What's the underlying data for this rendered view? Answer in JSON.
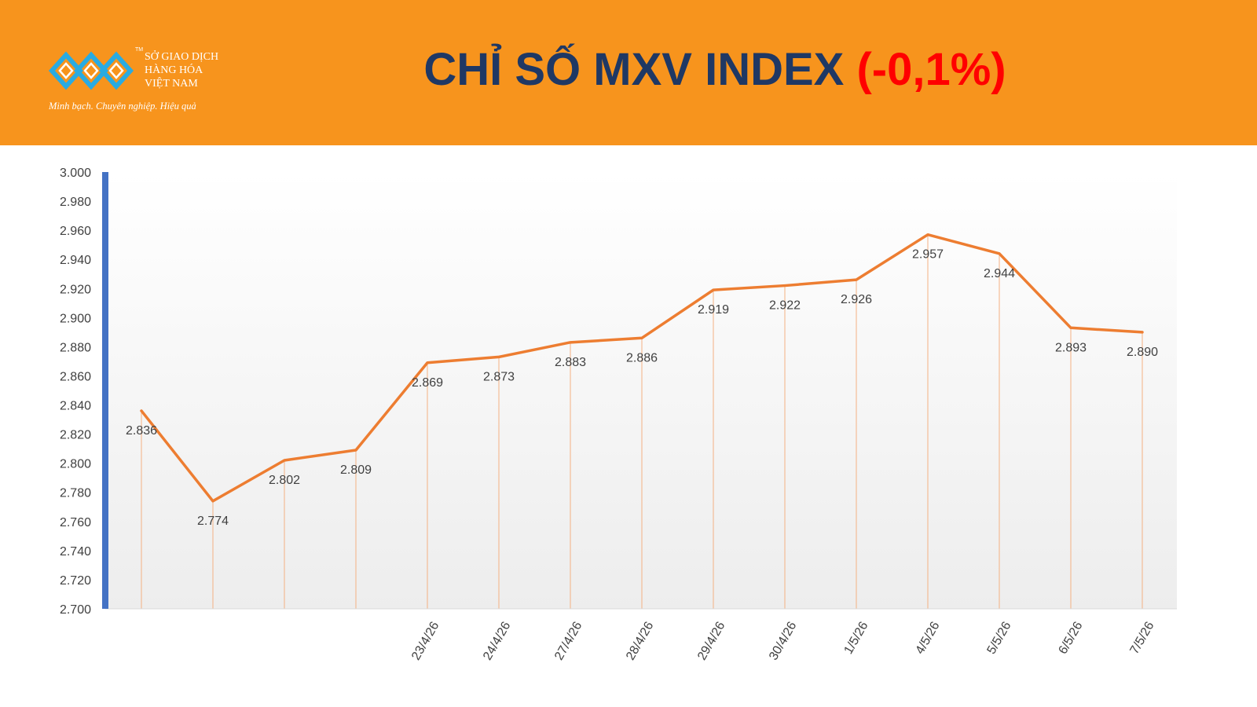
{
  "header": {
    "logo": {
      "trademark": "TM",
      "org_name": "SỞ GIAO DỊCH\nHÀNG HÓA\nVIỆT NAM",
      "slogan": "Minh bạch. Chuyên nghiệp. Hiệu quả"
    },
    "title_main": "CHỈ SỐ MXV INDEX ",
    "title_change": "(-0,1%)"
  },
  "colors": {
    "header_bg": "#F7941D",
    "title": "#1F3864",
    "change": "#FF0000",
    "line": "#ED7D31",
    "axis": "#4472C4",
    "logo": "#29ABE2"
  },
  "chart_data": {
    "type": "line",
    "title": "",
    "xlabel": "",
    "ylabel": "",
    "ylim": [
      2700,
      3000
    ],
    "y_ticks": [
      "2.700",
      "2.720",
      "2.740",
      "2.760",
      "2.780",
      "2.800",
      "2.820",
      "2.840",
      "2.860",
      "2.880",
      "2.900",
      "2.920",
      "2.940",
      "2.960",
      "2.980",
      "3.000"
    ],
    "grid": false,
    "legend": "none",
    "categories": [
      "",
      "",
      "",
      "",
      "23/4/26",
      "24/4/26",
      "27/4/26",
      "28/4/26",
      "29/4/26",
      "30/4/26",
      "1/5/26",
      "4/5/26",
      "5/5/26",
      "6/5/26",
      "7/5/26"
    ],
    "values": [
      2836,
      2774,
      2802,
      2809,
      2869,
      2873,
      2883,
      2886,
      2919,
      2922,
      2926,
      2957,
      2944,
      2893,
      2890
    ],
    "labels": [
      "2.836",
      "2.774",
      "2.802",
      "2.809",
      "2.869",
      "2.873",
      "2.883",
      "2.886",
      "2.919",
      "2.922",
      "2.926",
      "2.957",
      "2.944",
      "2.893",
      "2.890"
    ]
  }
}
